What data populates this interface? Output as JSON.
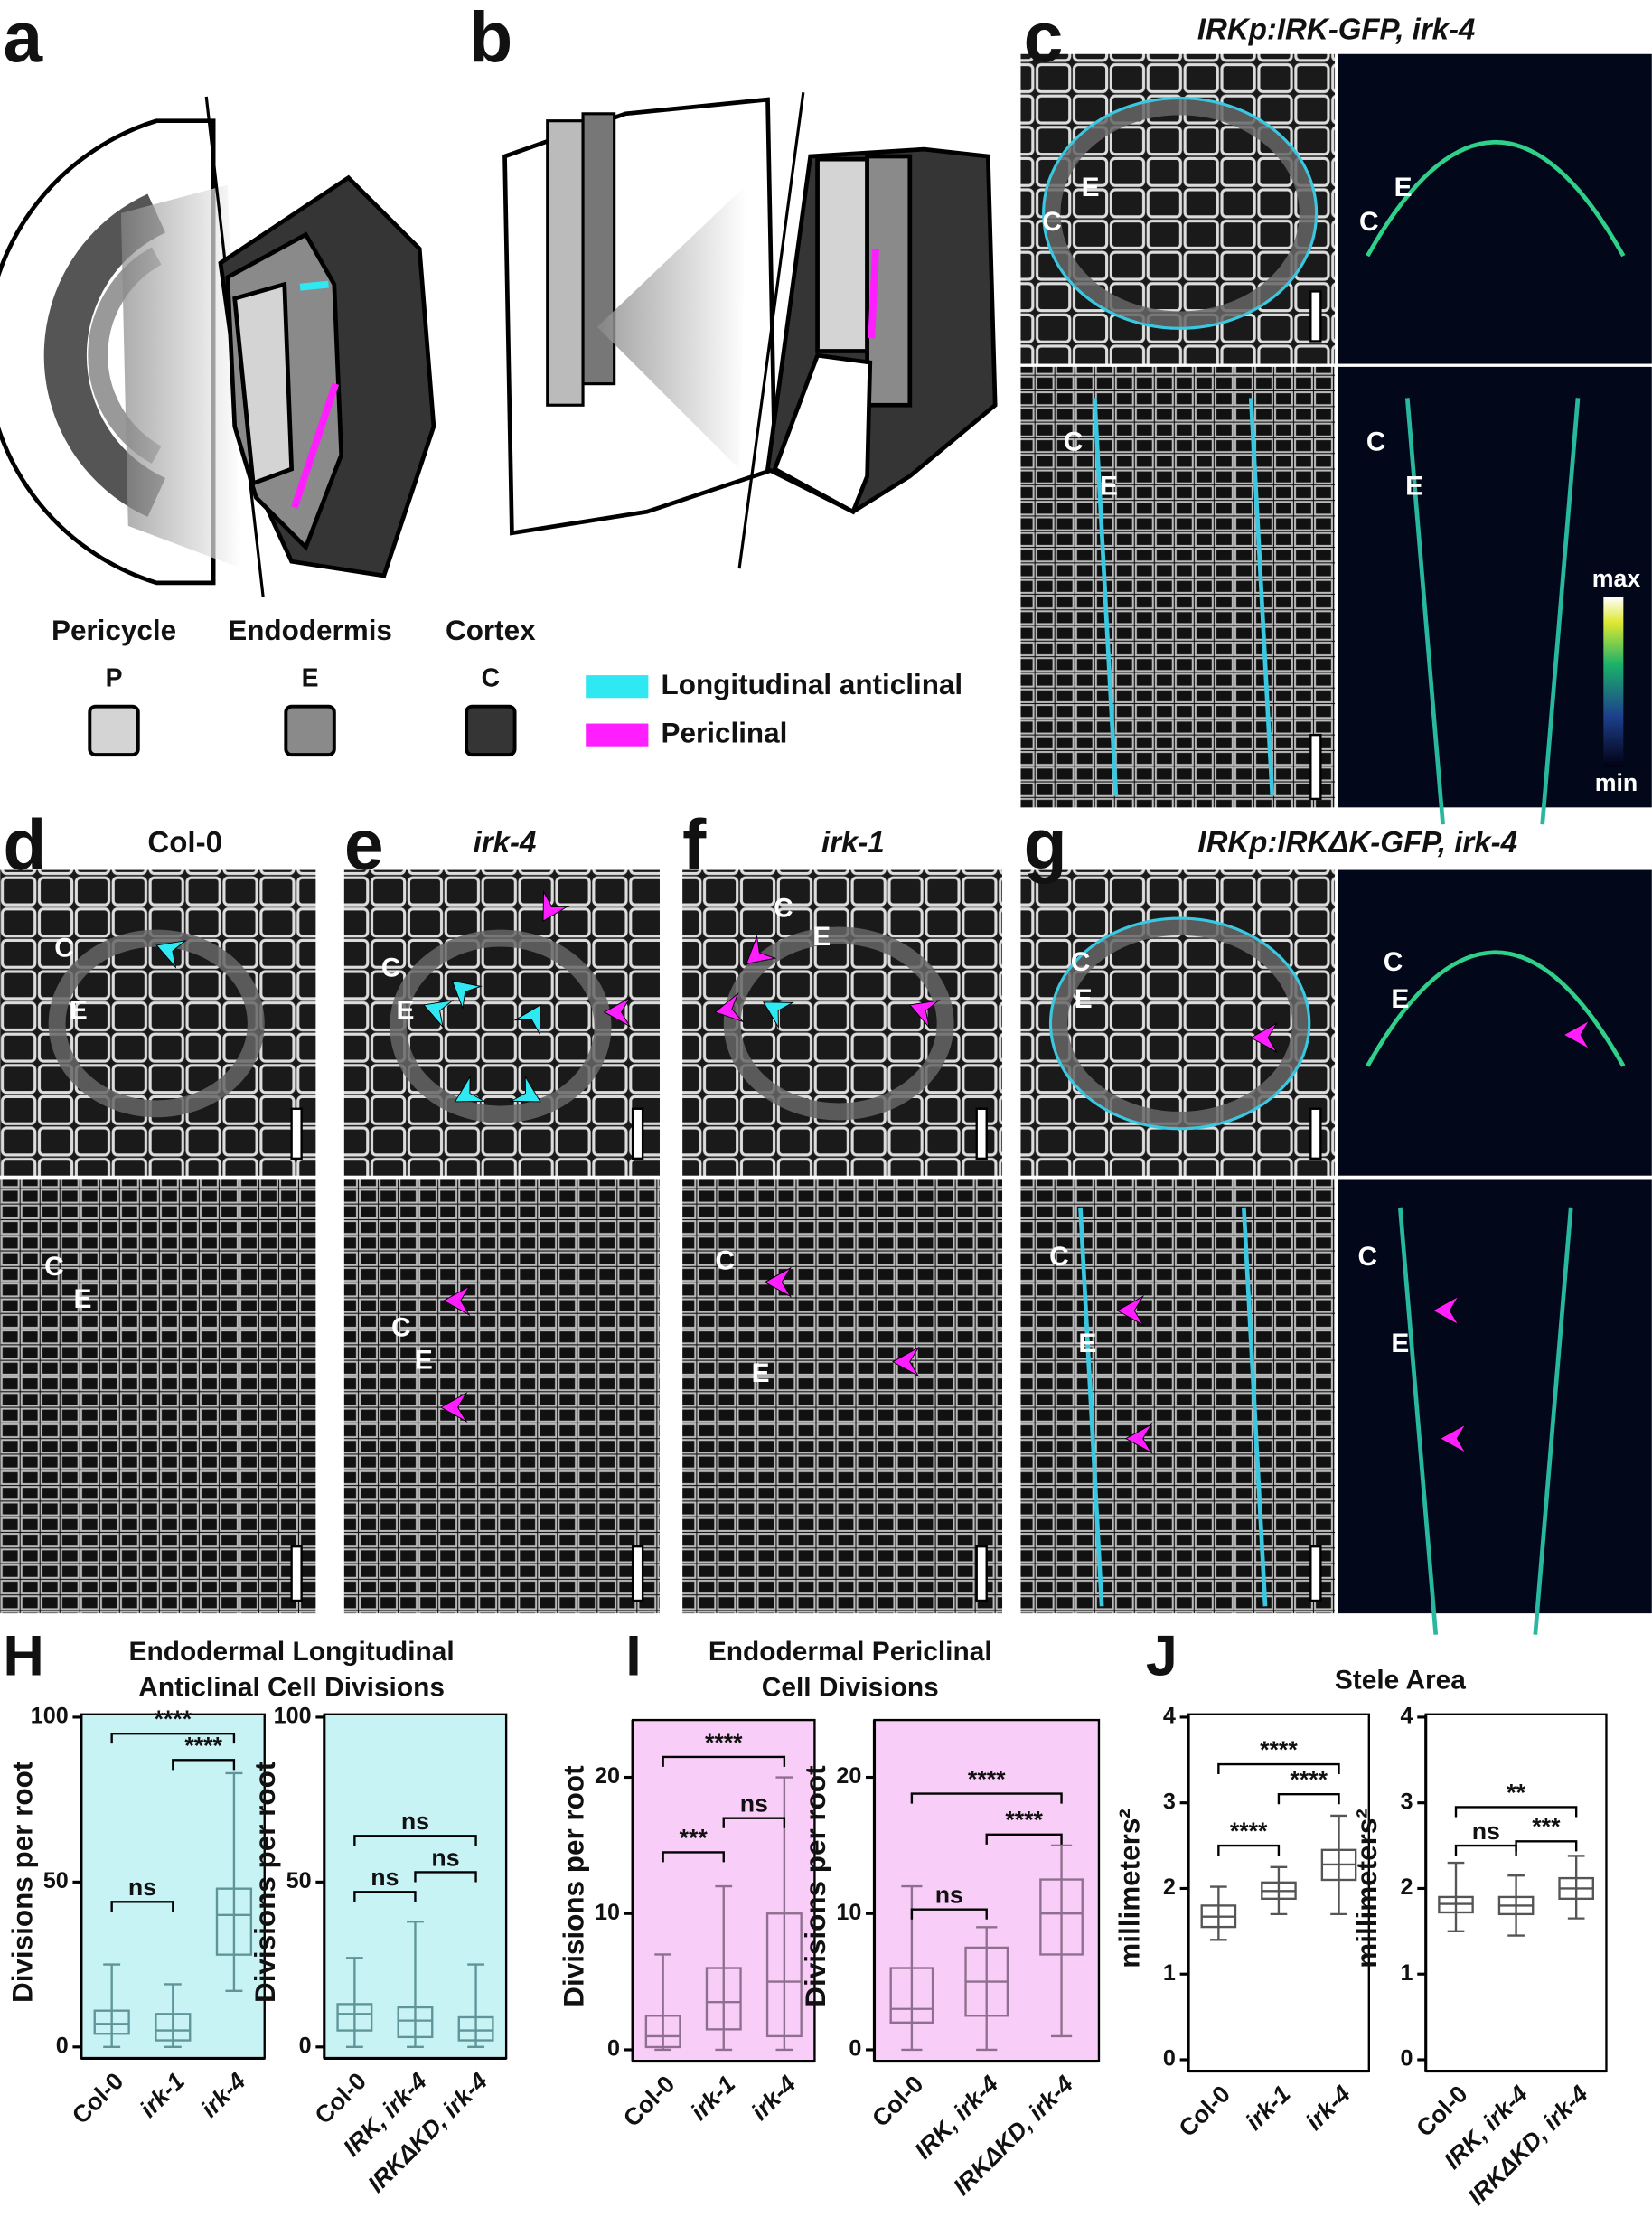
{
  "panel_labels": {
    "a": "a",
    "b": "b",
    "c": "c",
    "d": "d",
    "e": "e",
    "f": "f",
    "g": "g",
    "H": "H",
    "I": "I",
    "J": "J"
  },
  "image_titles": {
    "c": "IRKp:IRK-GFP, irk-4",
    "d": "Col-0",
    "e": "irk-4",
    "f": "irk-1",
    "g": "IRKp:IRKΔK-GFP, irk-4"
  },
  "colorbar": {
    "max": "max",
    "min": "min"
  },
  "cell_labels": {
    "cortex": "C",
    "endodermis": "E"
  },
  "tissue_legend": [
    {
      "name": "Pericycle",
      "abbr": "P",
      "color": "#d4d4d4"
    },
    {
      "name": "Endodermis",
      "abbr": "E",
      "color": "#8a8a8a"
    },
    {
      "name": "Cortex",
      "abbr": "C",
      "color": "#353535"
    }
  ],
  "division_legend": [
    {
      "name": "Longitudinal anticlinal",
      "color": "#2fe8f2"
    },
    {
      "name": "Periclinal",
      "color": "#ff1eff"
    }
  ],
  "panel_titles": {
    "H": [
      "Endodermal Longitudinal",
      "Anticlinal Cell Divisions"
    ],
    "I": [
      "Endodermal Periclinal",
      "Cell Divisions"
    ],
    "J": [
      "Stele Area"
    ]
  },
  "chart_data": [
    {
      "type": "box",
      "ylabel": "Divisions per root",
      "categories": [
        "Col-0",
        "irk-1",
        "irk-4"
      ],
      "boxes": [
        {
          "min": 0,
          "q1": 4,
          "median": 7,
          "q3": 11,
          "max": 25
        },
        {
          "min": 0,
          "q1": 2,
          "median": 5,
          "q3": 10,
          "max": 19
        },
        {
          "min": 17,
          "q1": 28,
          "median": 40,
          "q3": 48,
          "max": 83
        }
      ],
      "ylim": [
        0,
        100
      ],
      "yticks": [
        0,
        50,
        100
      ],
      "background": "#c8f3f5",
      "box_color": "#5f9598",
      "significance": [
        {
          "from": 0,
          "to": 1,
          "y": 44,
          "label": "ns"
        },
        {
          "from": 1,
          "to": 2,
          "y": 87,
          "label": "****"
        },
        {
          "from": 0,
          "to": 2,
          "y": 95,
          "label": "****"
        }
      ]
    },
    {
      "type": "box",
      "ylabel": "Divisions per root",
      "categories": [
        "Col-0",
        "IRK, irk-4",
        "IRKΔKD, irk-4"
      ],
      "boxes": [
        {
          "min": 0,
          "q1": 5,
          "median": 10,
          "q3": 13,
          "max": 27
        },
        {
          "min": 0,
          "q1": 3,
          "median": 8,
          "q3": 12,
          "max": 38
        },
        {
          "min": 0,
          "q1": 2,
          "median": 5,
          "q3": 9,
          "max": 25
        }
      ],
      "ylim": [
        0,
        100
      ],
      "yticks": [
        0,
        50,
        100
      ],
      "background": "#c8f3f5",
      "box_color": "#5f9598",
      "significance": [
        {
          "from": 0,
          "to": 1,
          "y": 47,
          "label": "ns"
        },
        {
          "from": 1,
          "to": 2,
          "y": 53,
          "label": "ns"
        },
        {
          "from": 0,
          "to": 2,
          "y": 64,
          "label": "ns"
        }
      ]
    },
    {
      "type": "box",
      "ylabel": "Divisions per root",
      "categories": [
        "Col-0",
        "irk-1",
        "irk-4"
      ],
      "boxes": [
        {
          "min": 0,
          "q1": 0.2,
          "median": 1,
          "q3": 2.5,
          "max": 7
        },
        {
          "min": 0,
          "q1": 1.5,
          "median": 3.5,
          "q3": 6,
          "max": 12
        },
        {
          "min": 0,
          "q1": 1,
          "median": 5,
          "q3": 10,
          "max": 20
        }
      ],
      "ylim": [
        0,
        24
      ],
      "yticks": [
        0,
        10,
        20
      ],
      "background": "#f8cdf7",
      "box_color": "#8f6f8f",
      "significance": [
        {
          "from": 0,
          "to": 1,
          "y": 14.5,
          "label": "***"
        },
        {
          "from": 1,
          "to": 2,
          "y": 17,
          "label": "ns"
        },
        {
          "from": 0,
          "to": 2,
          "y": 21.5,
          "label": "****"
        }
      ]
    },
    {
      "type": "box",
      "ylabel": "Divisions per root",
      "categories": [
        "Col-0",
        "IRK, irk-4",
        "IRKΔKD, irk-4"
      ],
      "boxes": [
        {
          "min": 0,
          "q1": 2,
          "median": 3,
          "q3": 6,
          "max": 12
        },
        {
          "min": 0,
          "q1": 2.5,
          "median": 5,
          "q3": 7.5,
          "max": 9
        },
        {
          "min": 1,
          "q1": 7,
          "median": 10,
          "q3": 12.5,
          "max": 15
        }
      ],
      "ylim": [
        0,
        24
      ],
      "yticks": [
        0,
        10,
        20
      ],
      "background": "#f8cdf7",
      "box_color": "#8f6f8f",
      "significance": [
        {
          "from": 0,
          "to": 1,
          "y": 10.3,
          "label": "ns"
        },
        {
          "from": 1,
          "to": 2,
          "y": 15.8,
          "label": "****"
        },
        {
          "from": 0,
          "to": 2,
          "y": 18.8,
          "label": "****"
        }
      ]
    },
    {
      "type": "box",
      "ylabel": "millimeters²",
      "categories": [
        "Col-0",
        "irk-1",
        "irk-4"
      ],
      "boxes": [
        {
          "min": 1.4,
          "q1": 1.55,
          "median": 1.67,
          "q3": 1.8,
          "max": 2.02
        },
        {
          "min": 1.7,
          "q1": 1.88,
          "median": 1.97,
          "q3": 2.07,
          "max": 2.25
        },
        {
          "min": 1.7,
          "q1": 2.1,
          "median": 2.28,
          "q3": 2.45,
          "max": 2.85
        }
      ],
      "ylim": [
        0,
        4
      ],
      "yticks": [
        0,
        1,
        2,
        3,
        4
      ],
      "background": "#ffffff",
      "box_color": "#555555",
      "significance": [
        {
          "from": 0,
          "to": 1,
          "y": 2.5,
          "label": "****"
        },
        {
          "from": 1,
          "to": 2,
          "y": 3.1,
          "label": "****"
        },
        {
          "from": 0,
          "to": 2,
          "y": 3.45,
          "label": "****"
        }
      ]
    },
    {
      "type": "box",
      "ylabel": "millimeters²",
      "categories": [
        "Col-0",
        "IRK, irk-4",
        "IRKΔKD, irk-4"
      ],
      "boxes": [
        {
          "min": 1.5,
          "q1": 1.72,
          "median": 1.82,
          "q3": 1.9,
          "max": 2.3
        },
        {
          "min": 1.45,
          "q1": 1.7,
          "median": 1.8,
          "q3": 1.9,
          "max": 2.15
        },
        {
          "min": 1.65,
          "q1": 1.88,
          "median": 2.0,
          "q3": 2.12,
          "max": 2.38
        }
      ],
      "ylim": [
        0,
        4
      ],
      "yticks": [
        0,
        1,
        2,
        3,
        4
      ],
      "background": "#ffffff",
      "box_color": "#555555",
      "significance": [
        {
          "from": 0,
          "to": 1,
          "y": 2.5,
          "label": "ns"
        },
        {
          "from": 1,
          "to": 2,
          "y": 2.55,
          "label": "***"
        },
        {
          "from": 0,
          "to": 2,
          "y": 2.95,
          "label": "**"
        }
      ]
    }
  ]
}
